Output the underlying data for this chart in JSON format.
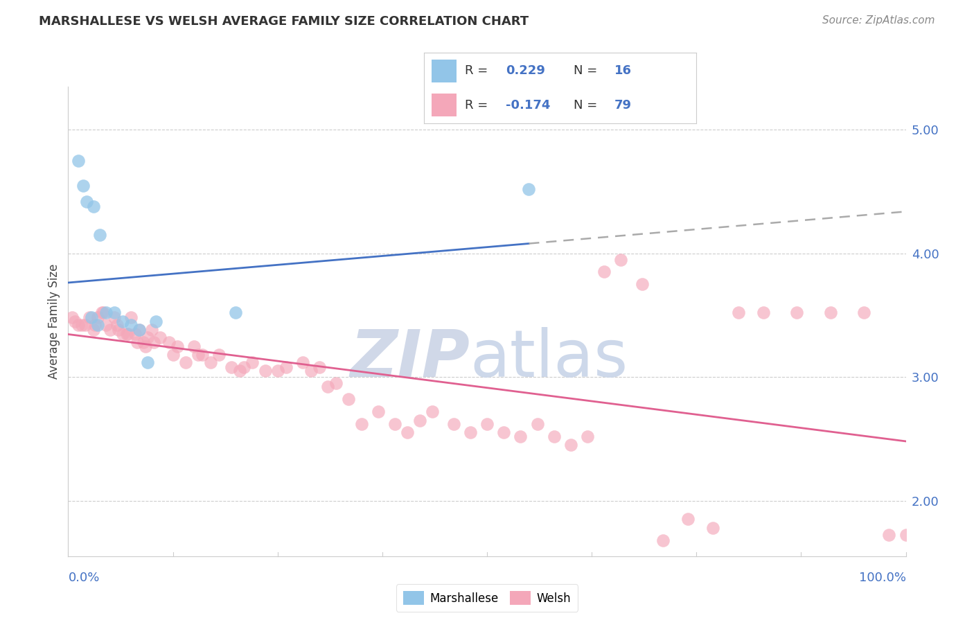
{
  "title": "MARSHALLESE VS WELSH AVERAGE FAMILY SIZE CORRELATION CHART",
  "source": "Source: ZipAtlas.com",
  "ylabel": "Average Family Size",
  "yaxis_ticks": [
    2.0,
    3.0,
    4.0,
    5.0
  ],
  "xlim": [
    0.0,
    100.0
  ],
  "ylim": [
    1.55,
    5.35
  ],
  "marshallese_color": "#92c5e8",
  "welsh_color": "#f4a7b9",
  "trend_blue_color": "#4472c4",
  "trend_pink_color": "#e06090",
  "dashed_color": "#aaaaaa",
  "R_marshallese": 0.229,
  "N_marshallese": 16,
  "R_welsh": -0.174,
  "N_welsh": 79,
  "marshallese_x": [
    1.2,
    1.8,
    2.2,
    3.0,
    3.8,
    4.5,
    5.5,
    6.5,
    7.5,
    8.5,
    9.5,
    10.5,
    20.0,
    55.0,
    2.8,
    3.5
  ],
  "marshallese_y": [
    4.75,
    4.55,
    4.42,
    4.38,
    4.15,
    3.52,
    3.52,
    3.45,
    3.42,
    3.38,
    3.12,
    3.45,
    3.52,
    4.52,
    3.48,
    3.42
  ],
  "welsh_x": [
    0.5,
    0.8,
    1.2,
    1.6,
    2.0,
    2.5,
    3.0,
    3.5,
    4.0,
    4.5,
    5.0,
    5.5,
    6.0,
    6.5,
    7.0,
    7.5,
    8.0,
    8.5,
    9.0,
    9.5,
    10.0,
    11.0,
    12.0,
    13.0,
    14.0,
    15.0,
    16.0,
    17.0,
    18.0,
    19.5,
    21.0,
    22.0,
    23.5,
    25.0,
    26.0,
    28.0,
    29.0,
    30.0,
    31.0,
    32.0,
    33.5,
    35.0,
    37.0,
    39.0,
    40.5,
    42.0,
    43.5,
    46.0,
    48.0,
    50.0,
    52.0,
    54.0,
    56.0,
    58.0,
    60.0,
    62.0,
    64.0,
    66.0,
    68.5,
    71.0,
    74.0,
    77.0,
    80.0,
    83.0,
    87.0,
    91.0,
    95.0,
    98.0,
    100.0,
    3.2,
    4.2,
    5.8,
    7.2,
    8.2,
    9.2,
    10.2,
    12.5,
    15.5,
    20.5
  ],
  "welsh_y": [
    3.48,
    3.45,
    3.42,
    3.42,
    3.42,
    3.48,
    3.38,
    3.48,
    3.52,
    3.42,
    3.38,
    3.48,
    3.38,
    3.35,
    3.35,
    3.48,
    3.35,
    3.38,
    3.28,
    3.32,
    3.38,
    3.32,
    3.28,
    3.25,
    3.12,
    3.25,
    3.18,
    3.12,
    3.18,
    3.08,
    3.08,
    3.12,
    3.05,
    3.05,
    3.08,
    3.12,
    3.05,
    3.08,
    2.92,
    2.95,
    2.82,
    2.62,
    2.72,
    2.62,
    2.55,
    2.65,
    2.72,
    2.62,
    2.55,
    2.62,
    2.55,
    2.52,
    2.62,
    2.52,
    2.45,
    2.52,
    3.85,
    3.95,
    3.75,
    1.68,
    1.85,
    1.78,
    3.52,
    3.52,
    3.52,
    3.52,
    3.52,
    1.72,
    1.72,
    3.42,
    3.52,
    3.42,
    3.35,
    3.28,
    3.25,
    3.28,
    3.18,
    3.18,
    3.05
  ],
  "watermark_zip": "ZIP",
  "watermark_atlas": "atlas",
  "watermark_color": "#d0d8e8",
  "background_color": "#ffffff",
  "grid_color": "#cccccc",
  "spine_color": "#cccccc",
  "blue_solid_end": 55.0,
  "title_fontsize": 13,
  "source_fontsize": 11,
  "tick_fontsize": 13,
  "ylabel_fontsize": 12
}
